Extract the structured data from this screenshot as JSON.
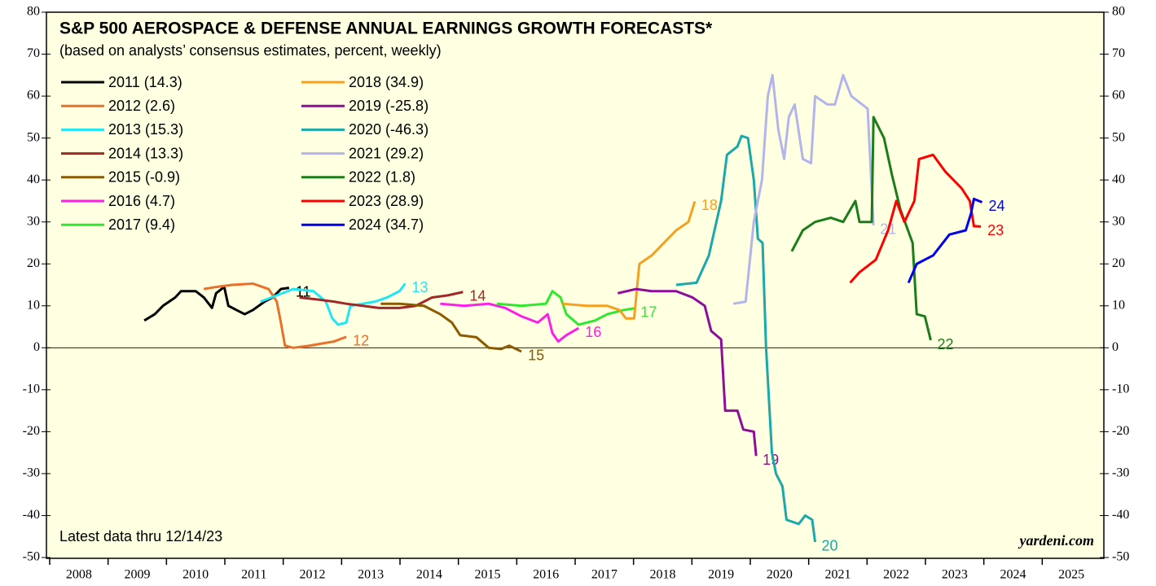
{
  "chart_data": {
    "type": "line",
    "title": "S&P 500 AEROSPACE & DEFENSE ANNUAL EARNINGS GROWTH FORECASTS*",
    "subtitle": "(based on analysts’ consensus estimates, percent, weekly)",
    "note": "Latest data thru  12/14/23",
    "source": "yardeni.com",
    "xlim": [
      2008,
      2026
    ],
    "xticks": [
      2008,
      2009,
      2010,
      2011,
      2012,
      2013,
      2014,
      2015,
      2016,
      2017,
      2018,
      2019,
      2020,
      2021,
      2022,
      2023,
      2024,
      2025
    ],
    "ylim": [
      -50,
      80
    ],
    "yticks": [
      -50,
      -40,
      -30,
      -20,
      -10,
      0,
      10,
      20,
      30,
      40,
      50,
      60,
      70,
      80
    ],
    "series": [
      {
        "name": "2011 (14.3)",
        "label": "11",
        "color": "#000000",
        "x": [
          2009.62,
          2009.8,
          2009.94,
          2010.15,
          2010.25,
          2010.5,
          2010.64,
          2010.78,
          2010.85,
          2010.99,
          2011.06,
          2011.2,
          2011.34,
          2011.48,
          2011.68,
          2011.82,
          2011.96,
          2012.1
        ],
        "values": [
          6.5,
          8,
          10,
          12,
          13.5,
          13.5,
          12,
          9.5,
          13,
          14.5,
          10,
          9,
          8,
          9,
          11,
          12,
          14,
          14.3
        ]
      },
      {
        "name": "2012 (2.6)",
        "label": "12",
        "color": "#e8702a",
        "x": [
          2010.64,
          2010.85,
          2011.13,
          2011.48,
          2011.75,
          2011.89,
          2011.96,
          2012.03,
          2012.17,
          2012.45,
          2012.66,
          2012.87,
          2013.08
        ],
        "values": [
          14,
          14.5,
          15,
          15.3,
          14,
          11,
          6,
          0.5,
          0,
          0.5,
          1,
          1.5,
          2.6
        ]
      },
      {
        "name": "2013 (15.3)",
        "label": "13",
        "color": "#1ee8f5",
        "x": [
          2011.61,
          2011.89,
          2012.17,
          2012.52,
          2012.73,
          2012.84,
          2012.94,
          2013.08,
          2013.15,
          2013.36,
          2013.57,
          2013.78,
          2013.99,
          2014.09
        ],
        "values": [
          11,
          12.5,
          14,
          13.5,
          11,
          7,
          5.5,
          6,
          10,
          10.5,
          11,
          12,
          13.5,
          15.3
        ]
      },
      {
        "name": "2014 (13.3)",
        "label": "14",
        "color": "#a02828",
        "x": [
          2012.28,
          2012.59,
          2012.87,
          2013.08,
          2013.36,
          2013.64,
          2013.99,
          2014.27,
          2014.55,
          2014.82,
          2015.08
        ],
        "values": [
          12,
          11.5,
          11,
          10.5,
          10,
          9.5,
          9.5,
          10,
          12,
          12.5,
          13.3
        ]
      },
      {
        "name": "2015 (-0.9)",
        "label": "15",
        "color": "#8b5a00",
        "x": [
          2013.67,
          2013.99,
          2014.41,
          2014.69,
          2014.89,
          2015.03,
          2015.31,
          2015.52,
          2015.73,
          2015.87,
          2016.08
        ],
        "values": [
          10.5,
          10.5,
          10,
          8,
          6,
          3,
          2.5,
          0,
          -0.3,
          0.5,
          -0.9
        ]
      },
      {
        "name": "2016 (4.7)",
        "label": "16",
        "color": "#ff1ee8",
        "x": [
          2014.69,
          2015.1,
          2015.52,
          2015.8,
          2016.08,
          2016.36,
          2016.53,
          2016.61,
          2016.71,
          2016.85,
          2017.06
        ],
        "values": [
          10.5,
          10,
          10.5,
          9.5,
          7.5,
          6,
          8,
          3.5,
          1.5,
          3,
          4.7
        ]
      },
      {
        "name": "2017 (9.4)",
        "label": "17",
        "color": "#2ee82e",
        "x": [
          2015.66,
          2016.08,
          2016.5,
          2016.61,
          2016.75,
          2016.85,
          2017.06,
          2017.34,
          2017.55,
          2017.83,
          2018.01
        ],
        "values": [
          10.5,
          10,
          10.5,
          13.5,
          12,
          8,
          5.5,
          6.5,
          8,
          9,
          9.4
        ]
      },
      {
        "name": "2018 (34.9)",
        "label": "18",
        "color": "#f5a020",
        "x": [
          2016.78,
          2017.2,
          2017.55,
          2017.76,
          2017.87,
          2018.01,
          2018.1,
          2018.31,
          2018.52,
          2018.73,
          2018.94,
          2019.05
        ],
        "values": [
          10.5,
          10,
          10,
          9,
          7,
          7,
          20,
          22,
          25,
          28,
          30,
          34.9
        ]
      },
      {
        "name": "2019 (-25.8)",
        "label": "19",
        "color": "#8e0e9a",
        "x": [
          2017.73,
          2018.04,
          2018.31,
          2018.73,
          2019.01,
          2019.22,
          2019.33,
          2019.5,
          2019.57,
          2019.78,
          2019.88,
          2020.06,
          2020.1
        ],
        "values": [
          13,
          14,
          13.5,
          13.5,
          12,
          10,
          4,
          2,
          -15,
          -15,
          -19.5,
          -20,
          -25.8
        ]
      },
      {
        "name": "2020 (-46.3)",
        "label": "20",
        "color": "#1aa8a8",
        "x": [
          2018.73,
          2019.08,
          2019.29,
          2019.5,
          2019.6,
          2019.78,
          2019.85,
          2019.96,
          2020.06,
          2020.13,
          2020.21,
          2020.27,
          2020.37,
          2020.44,
          2020.55,
          2020.62,
          2020.83,
          2020.94,
          2021.06,
          2021.11
        ],
        "values": [
          15,
          15.5,
          22,
          35,
          46,
          48,
          50.5,
          50,
          40,
          26,
          25,
          0,
          -25,
          -30,
          -33,
          -41,
          -42,
          -40,
          -41,
          -46.3
        ]
      },
      {
        "name": "2021 (29.2)",
        "label": "21",
        "color": "#b4b4ec",
        "x": [
          2019.71,
          2019.92,
          2020.06,
          2020.2,
          2020.3,
          2020.38,
          2020.48,
          2020.58,
          2020.66,
          2020.76,
          2020.9,
          2021.04,
          2021.11,
          2021.32,
          2021.45,
          2021.59,
          2021.73,
          2022.01,
          2022.11
        ],
        "values": [
          10.5,
          11,
          30,
          40,
          60,
          65,
          52,
          45,
          55,
          58,
          45,
          44,
          60,
          58,
          58,
          65,
          60,
          57,
          29.2
        ]
      },
      {
        "name": "2022 (1.8)",
        "label": "22",
        "color": "#1a7d1a",
        "x": [
          2020.71,
          2020.9,
          2021.11,
          2021.38,
          2021.59,
          2021.8,
          2021.87,
          2022.08,
          2022.11,
          2022.29,
          2022.43,
          2022.57,
          2022.78,
          2022.85,
          2022.99,
          2023.09
        ],
        "values": [
          23,
          28,
          30,
          31,
          30,
          35,
          30,
          30,
          55,
          50,
          41,
          33,
          25,
          8,
          7.5,
          1.8
        ]
      },
      {
        "name": "2023 (28.9)",
        "label": "23",
        "color": "#ff0000",
        "x": [
          2021.71,
          2021.87,
          2022.15,
          2022.36,
          2022.5,
          2022.64,
          2022.81,
          2022.89,
          2023.13,
          2023.34,
          2023.62,
          2023.76,
          2023.83,
          2023.95
        ],
        "values": [
          15.5,
          18,
          21,
          28,
          35,
          30,
          35,
          45,
          46,
          42,
          38,
          35,
          29,
          28.9
        ]
      },
      {
        "name": "2024 (34.7)",
        "label": "24",
        "color": "#0000ee",
        "x": [
          2022.71,
          2022.85,
          2023.13,
          2023.41,
          2023.69,
          2023.78,
          2023.83,
          2023.97
        ],
        "values": [
          15.5,
          20,
          22,
          27,
          28,
          32,
          35.5,
          34.7
        ]
      }
    ]
  }
}
